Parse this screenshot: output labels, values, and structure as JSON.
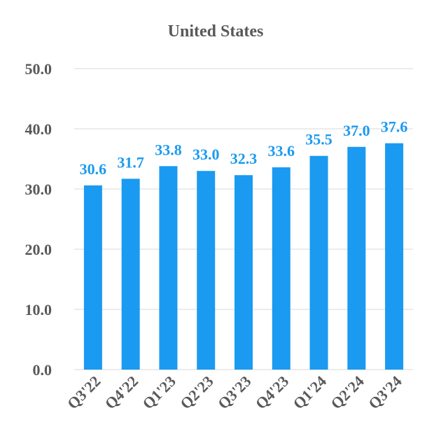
{
  "chart_data": {
    "type": "bar",
    "title": "United States",
    "categories": [
      "Q3'22",
      "Q4'22",
      "Q1'23",
      "Q2'23",
      "Q3'23",
      "Q4'23",
      "Q1'24",
      "Q2'24",
      "Q3'24"
    ],
    "values": [
      30.6,
      31.7,
      33.8,
      33.0,
      32.3,
      33.6,
      35.5,
      37.0,
      37.6
    ],
    "data_labels": [
      "30.6",
      "31.7",
      "33.8",
      "33.0",
      "32.3",
      "33.6",
      "35.5",
      "37.0",
      "37.6"
    ],
    "y_ticks": [
      "0.0",
      "10.0",
      "20.0",
      "30.0",
      "40.0",
      "50.0"
    ],
    "ylim": [
      0,
      50
    ],
    "grid": true,
    "legend": "none",
    "colors": {
      "bar": "#1a9af0",
      "label": "#1a9af0",
      "grid": "#d9d9d9",
      "text": "#595959"
    }
  }
}
